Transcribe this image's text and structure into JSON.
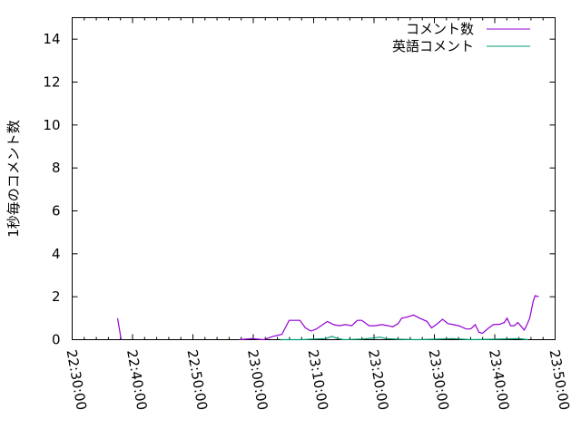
{
  "chart_data": {
    "type": "line",
    "title": "",
    "xlabel": "",
    "ylabel": "1秒毎のコメント数",
    "xlim": [
      "22:30:00",
      "23:50:00"
    ],
    "ylim": [
      0,
      15
    ],
    "xticks": [
      "22:30:00",
      "22:40:00",
      "22:50:00",
      "23:00:00",
      "23:10:00",
      "23:20:00",
      "23:30:00",
      "23:40:00",
      "23:50:00"
    ],
    "yticks": [
      0,
      2,
      4,
      6,
      8,
      10,
      12,
      14
    ],
    "grid": false,
    "legend_position": "top-right",
    "series": [
      {
        "name": "コメント数",
        "color": "#9400d3",
        "segments": [
          [
            [
              "22:37:31",
              1.0
            ],
            [
              "22:38:07",
              0
            ]
          ],
          [
            [
              "22:57:40",
              0
            ],
            [
              "22:59:47",
              0.05
            ],
            [
              "23:01:44",
              0
            ],
            [
              "23:03:14",
              0.15
            ],
            [
              "23:04:44",
              0.25
            ],
            [
              "23:05:56",
              0.9
            ],
            [
              "23:07:44",
              0.9
            ],
            [
              "23:08:38",
              0.55
            ],
            [
              "23:09:33",
              0.4
            ],
            [
              "23:10:27",
              0.5
            ],
            [
              "23:11:30",
              0.7
            ],
            [
              "23:12:15",
              0.85
            ],
            [
              "23:13:19",
              0.7
            ],
            [
              "23:14:13",
              0.65
            ],
            [
              "23:15:16",
              0.7
            ],
            [
              "23:16:19",
              0.65
            ],
            [
              "23:17:13",
              0.9
            ],
            [
              "23:17:58",
              0.9
            ],
            [
              "23:19:10",
              0.65
            ],
            [
              "23:20:13",
              0.65
            ],
            [
              "23:21:17",
              0.7
            ],
            [
              "23:22:20",
              0.65
            ],
            [
              "23:23:05",
              0.6
            ],
            [
              "23:23:59",
              0.75
            ],
            [
              "23:24:35",
              1.0
            ],
            [
              "23:25:29",
              1.05
            ],
            [
              "23:26:32",
              1.15
            ],
            [
              "23:27:35",
              1.0
            ],
            [
              "23:28:47",
              0.85
            ],
            [
              "23:29:32",
              0.55
            ],
            [
              "23:30:18",
              0.7
            ],
            [
              "23:31:21",
              0.95
            ],
            [
              "23:32:15",
              0.75
            ],
            [
              "23:33:09",
              0.7
            ],
            [
              "23:34:03",
              0.65
            ],
            [
              "23:35:16",
              0.5
            ],
            [
              "23:36:01",
              0.5
            ],
            [
              "23:36:46",
              0.7
            ],
            [
              "23:37:22",
              0.35
            ],
            [
              "23:37:58",
              0.3
            ],
            [
              "23:39:00",
              0.55
            ],
            [
              "23:39:47",
              0.7
            ],
            [
              "23:40:50",
              0.72
            ],
            [
              "23:41:35",
              0.8
            ],
            [
              "23:42:02",
              1.0
            ],
            [
              "23:42:38",
              0.65
            ],
            [
              "23:43:14",
              0.65
            ],
            [
              "23:43:50",
              0.8
            ],
            [
              "23:44:26",
              0.6
            ],
            [
              "23:44:53",
              0.45
            ],
            [
              "23:45:20",
              0.7
            ],
            [
              "23:45:47",
              1.0
            ],
            [
              "23:46:23",
              1.8
            ],
            [
              "23:46:41",
              2.05
            ],
            [
              "23:47:17",
              2.0
            ]
          ]
        ]
      },
      {
        "name": "英語コメント",
        "color": "#009e73",
        "segments": [
          [
            [
              "23:04:30",
              0
            ],
            [
              "23:08:00",
              0
            ],
            [
              "23:10:00",
              0.03
            ],
            [
              "23:12:00",
              0.05
            ],
            [
              "23:13:00",
              0.15
            ],
            [
              "23:14:00",
              0.05
            ],
            [
              "23:15:00",
              0
            ],
            [
              "23:18:00",
              0.03
            ],
            [
              "23:20:00",
              0.08
            ],
            [
              "23:21:00",
              0.12
            ],
            [
              "23:22:00",
              0.05
            ],
            [
              "23:24:00",
              0.02
            ],
            [
              "23:27:00",
              0
            ],
            [
              "23:30:00",
              0.02
            ],
            [
              "23:33:00",
              0.05
            ],
            [
              "23:36:00",
              0
            ],
            [
              "23:40:00",
              0.02
            ],
            [
              "23:44:00",
              0.05
            ],
            [
              "23:45:30",
              0
            ]
          ]
        ]
      }
    ]
  }
}
